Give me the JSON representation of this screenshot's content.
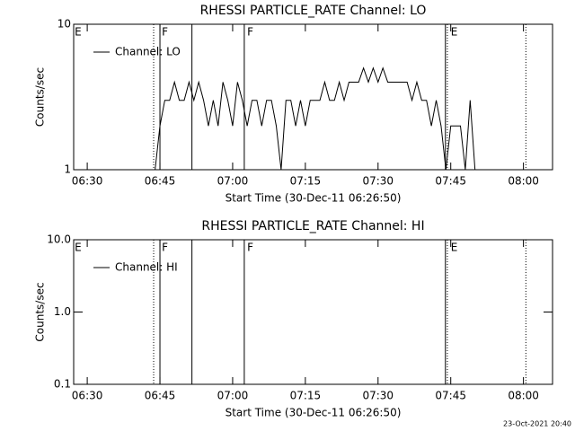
{
  "chart_data": [
    {
      "type": "line",
      "title": "RHESSI PARTICLE_RATE Channel: LO",
      "xlabel": "Start Time (30-Dec-11 06:26:50)",
      "ylabel": "Counts/sec",
      "ylog": true,
      "xlim": [
        27.2,
        126
      ],
      "ylim": [
        1,
        10
      ],
      "yticks": [
        1,
        10
      ],
      "xticks": [
        {
          "value": 30,
          "label": "06:30"
        },
        {
          "value": 45,
          "label": "06:45"
        },
        {
          "value": 60,
          "label": "07:00"
        },
        {
          "value": 75,
          "label": "07:15"
        },
        {
          "value": 90,
          "label": "07:30"
        },
        {
          "value": 105,
          "label": "07:45"
        },
        {
          "value": 120,
          "label": "08:00"
        }
      ],
      "x": [
        44,
        45,
        46,
        47,
        48,
        49,
        50,
        51,
        52,
        53,
        54,
        55,
        56,
        57,
        58,
        59,
        60,
        61,
        62,
        63,
        64,
        65,
        66,
        67,
        68,
        69,
        70,
        71,
        72,
        73,
        74,
        75,
        76,
        77,
        78,
        79,
        80,
        81,
        82,
        83,
        84,
        85,
        86,
        87,
        88,
        89,
        90,
        91,
        92,
        93,
        94,
        95,
        96,
        97,
        98,
        99,
        100,
        101,
        102,
        103,
        104,
        105,
        106,
        107,
        108,
        109,
        110
      ],
      "series": [
        {
          "name": "Channel: LO",
          "color": "#000000",
          "values": [
            1,
            2,
            3,
            3,
            4,
            3,
            3,
            4,
            3,
            4,
            3,
            2,
            3,
            2,
            4,
            3,
            2,
            4,
            3,
            2,
            3,
            3,
            2,
            3,
            3,
            2,
            1,
            3,
            3,
            2,
            3,
            2,
            3,
            3,
            3,
            4,
            3,
            3,
            4,
            3,
            4,
            4,
            4,
            5,
            4,
            5,
            4,
            5,
            4,
            4,
            4,
            4,
            4,
            3,
            4,
            3,
            3,
            2,
            3,
            2,
            1,
            2,
            2,
            2,
            1,
            3,
            1
          ]
        }
      ],
      "events": [
        {
          "x": 43.7,
          "style": "dotted"
        },
        {
          "x": 45,
          "style": "solid"
        },
        {
          "x": 51.6,
          "style": "solid"
        },
        {
          "x": 62.4,
          "style": "solid"
        },
        {
          "x": 103.9,
          "style": "solid"
        },
        {
          "x": 104.3,
          "style": "dotted"
        },
        {
          "x": 120.5,
          "style": "dotted"
        }
      ],
      "event_labels": [
        {
          "x": 27.4,
          "text": "E"
        },
        {
          "x": 45.4,
          "text": "F"
        },
        {
          "x": 63,
          "text": "F"
        },
        {
          "x": 105,
          "text": "E"
        }
      ]
    },
    {
      "type": "line",
      "title": "RHESSI PARTICLE_RATE Channel: HI",
      "xlabel": "Start Time (30-Dec-11 06:26:50)",
      "ylabel": "Counts/sec",
      "ylog": true,
      "xlim": [
        27.2,
        126
      ],
      "ylim": [
        0.1,
        10
      ],
      "yticks": [
        0.1,
        {
          "value": 1,
          "label": "1.0"
        },
        {
          "value": 10,
          "label": "10.0"
        }
      ],
      "xticks": [
        {
          "value": 30,
          "label": "06:30"
        },
        {
          "value": 45,
          "label": "06:45"
        },
        {
          "value": 60,
          "label": "07:00"
        },
        {
          "value": 75,
          "label": "07:15"
        },
        {
          "value": 90,
          "label": "07:30"
        },
        {
          "value": 105,
          "label": "07:45"
        },
        {
          "value": 120,
          "label": "08:00"
        }
      ],
      "x": [],
      "series": [
        {
          "name": "Channel: HI",
          "color": "#000000",
          "values": []
        }
      ],
      "events": [
        {
          "x": 43.7,
          "style": "dotted"
        },
        {
          "x": 45,
          "style": "solid"
        },
        {
          "x": 51.6,
          "style": "solid"
        },
        {
          "x": 62.4,
          "style": "solid"
        },
        {
          "x": 103.9,
          "style": "solid"
        },
        {
          "x": 104.3,
          "style": "dotted"
        },
        {
          "x": 120.5,
          "style": "dotted"
        }
      ],
      "event_labels": [
        {
          "x": 27.4,
          "text": "E"
        },
        {
          "x": 45.4,
          "text": "F"
        },
        {
          "x": 63,
          "text": "F"
        },
        {
          "x": 105,
          "text": "E"
        }
      ]
    }
  ],
  "footer": "23-Oct-2021 20:40"
}
